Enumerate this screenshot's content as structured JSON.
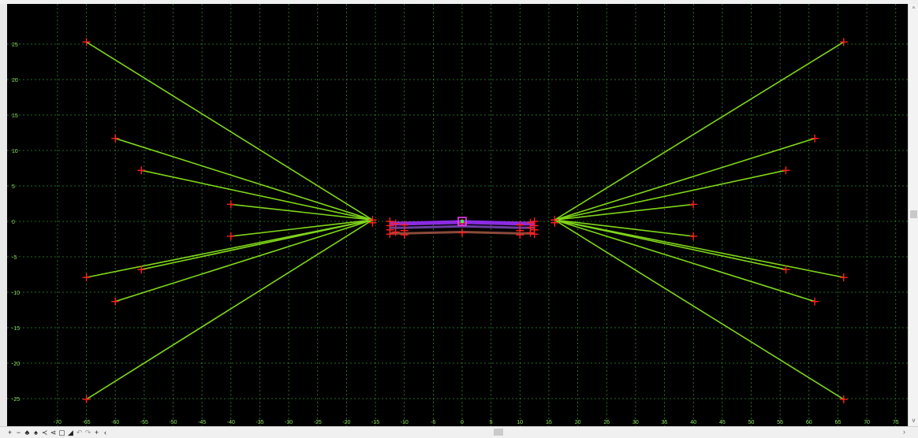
{
  "chart_data": {
    "type": "scatter",
    "title": "",
    "xlabel": "",
    "ylabel": "",
    "xlim": [
      -72,
      77
    ],
    "ylim": [
      -28,
      29
    ],
    "grid": true,
    "x_ticks": [
      -70,
      -65,
      -60,
      -55,
      -50,
      -45,
      -40,
      -35,
      -30,
      -25,
      -20,
      -15,
      -10,
      -5,
      0,
      5,
      10,
      15,
      20,
      25,
      30,
      35,
      40,
      45,
      50,
      55,
      60,
      65,
      70,
      75
    ],
    "y_ticks": [
      25,
      20,
      15,
      10,
      5,
      0,
      -5,
      -10,
      -15,
      -20,
      -25
    ],
    "colors": {
      "background": "#000000",
      "grid": "#2f8a2f",
      "lines": "#7fd61a",
      "points": "#ff1f1f",
      "template_top": "#8a2be2",
      "template_bottom": "#8b4a3a",
      "marker": "#ff3cff"
    },
    "radiating_lines": [
      {
        "from": [
          -15.5,
          0.2
        ],
        "to": [
          -65,
          25.3
        ]
      },
      {
        "from": [
          -15.5,
          0.2
        ],
        "to": [
          -60,
          11.7
        ]
      },
      {
        "from": [
          -15.5,
          0.2
        ],
        "to": [
          -55.5,
          7.2
        ]
      },
      {
        "from": [
          -15.5,
          0.2
        ],
        "to": [
          -40,
          2.4
        ]
      },
      {
        "from": [
          -15.5,
          0.2
        ],
        "to": [
          -40,
          -2.1
        ]
      },
      {
        "from": [
          -15.5,
          0.2
        ],
        "to": [
          -55.5,
          -6.8
        ]
      },
      {
        "from": [
          -15.5,
          0.2
        ],
        "to": [
          -65,
          -7.9
        ]
      },
      {
        "from": [
          -15.5,
          0.2
        ],
        "to": [
          -60,
          -11.3
        ]
      },
      {
        "from": [
          -15.5,
          0.2
        ],
        "to": [
          -65,
          -25.1
        ]
      },
      {
        "from": [
          16,
          0.2
        ],
        "to": [
          66,
          25.3
        ]
      },
      {
        "from": [
          16,
          0.2
        ],
        "to": [
          61,
          11.7
        ]
      },
      {
        "from": [
          16,
          0.2
        ],
        "to": [
          56,
          7.2
        ]
      },
      {
        "from": [
          16,
          0.2
        ],
        "to": [
          40,
          2.4
        ]
      },
      {
        "from": [
          16,
          0.2
        ],
        "to": [
          40,
          -2.1
        ]
      },
      {
        "from": [
          16,
          0.2
        ],
        "to": [
          56,
          -6.8
        ]
      },
      {
        "from": [
          16,
          0.2
        ],
        "to": [
          66,
          -7.9
        ]
      },
      {
        "from": [
          16,
          0.2
        ],
        "to": [
          61,
          -11.3
        ]
      },
      {
        "from": [
          16,
          0.2
        ],
        "to": [
          66,
          -25.1
        ]
      }
    ],
    "points": [
      [
        -65,
        25.3
      ],
      [
        -60,
        11.7
      ],
      [
        -55.5,
        7.2
      ],
      [
        -40,
        2.4
      ],
      [
        -40,
        -2.1
      ],
      [
        -55.5,
        -6.8
      ],
      [
        -65,
        -7.9
      ],
      [
        -60,
        -11.3
      ],
      [
        -65,
        -25.1
      ],
      [
        66,
        25.3
      ],
      [
        61,
        11.7
      ],
      [
        56,
        7.2
      ],
      [
        40,
        2.4
      ],
      [
        40,
        -2.1
      ],
      [
        56,
        -6.8
      ],
      [
        66,
        -7.9
      ],
      [
        61,
        -11.3
      ],
      [
        66,
        -25.1
      ],
      [
        -15.5,
        0.2
      ],
      [
        -15.5,
        -0.2
      ],
      [
        16,
        0.2
      ],
      [
        16,
        -0.2
      ],
      [
        -12.5,
        0
      ],
      [
        -12.5,
        -0.6
      ],
      [
        -12.5,
        -1.2
      ],
      [
        -12.5,
        -1.8
      ],
      [
        -11.5,
        -0.3
      ],
      [
        -11.5,
        -1.5
      ],
      [
        -10,
        -0.5
      ],
      [
        -10,
        -1.3
      ],
      [
        -10,
        -1.9
      ],
      [
        10,
        -0.5
      ],
      [
        10,
        -1.3
      ],
      [
        10,
        -1.9
      ],
      [
        11.8,
        -0.2
      ],
      [
        11.8,
        -0.9
      ],
      [
        11.8,
        -1.6
      ],
      [
        12.5,
        0
      ],
      [
        12.5,
        -0.6
      ],
      [
        12.5,
        -1.2
      ],
      [
        12.5,
        -1.8
      ],
      [
        0,
        -0.2
      ],
      [
        0,
        -1.6
      ]
    ],
    "template_top": [
      [
        -12.5,
        -0.3
      ],
      [
        -10,
        -0.3
      ],
      [
        0,
        -0.1
      ],
      [
        10,
        -0.3
      ],
      [
        12.5,
        -0.3
      ]
    ],
    "template_mid": [
      [
        -12.5,
        -0.9
      ],
      [
        -10,
        -0.9
      ],
      [
        0,
        -0.7
      ],
      [
        10,
        -0.9
      ],
      [
        12.5,
        -0.9
      ]
    ],
    "template_bottom": [
      [
        -12.5,
        -1.7
      ],
      [
        -10,
        -1.7
      ],
      [
        0,
        -1.5
      ],
      [
        10,
        -1.7
      ],
      [
        12.5,
        -1.7
      ]
    ],
    "center_marker": [
      0,
      0
    ]
  },
  "statusbar": {
    "tools": [
      {
        "icon": "plus-icon",
        "glyph": "+"
      },
      {
        "icon": "minus-icon",
        "glyph": "−"
      },
      {
        "icon": "tree-icon",
        "glyph": "♣"
      },
      {
        "icon": "group-icon",
        "glyph": "♠"
      },
      {
        "icon": "connect-icon",
        "glyph": "≺"
      },
      {
        "icon": "link-icon",
        "glyph": "⋖"
      },
      {
        "icon": "window-icon",
        "glyph": "▢"
      },
      {
        "icon": "corner-icon",
        "glyph": "◢"
      },
      {
        "icon": "undo-icon",
        "glyph": "↶"
      },
      {
        "icon": "redo-icon",
        "glyph": "↷"
      },
      {
        "icon": "cross-icon",
        "glyph": "+"
      },
      {
        "icon": "chevron-left-icon",
        "glyph": "‹"
      }
    ],
    "scroll_right_glyph": "›",
    "vscroll_up_glyph": "^",
    "vscroll_down_glyph": "v"
  }
}
